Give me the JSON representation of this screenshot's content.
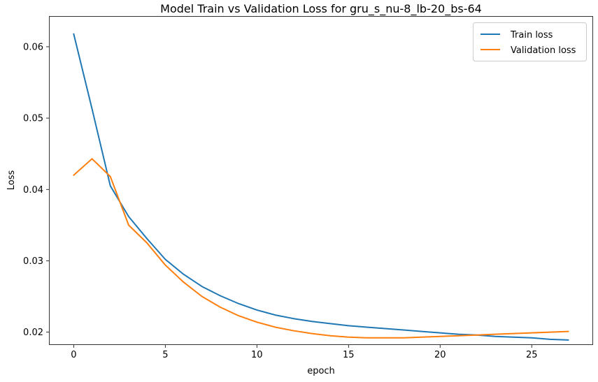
{
  "chart_data": {
    "type": "line",
    "title": "Model Train vs Validation Loss for gru_s_nu-8_lb-20_bs-64",
    "xlabel": "epoch",
    "ylabel": "Loss",
    "xlim": [
      -1.35,
      28.35
    ],
    "ylim": [
      0.0182,
      0.0643
    ],
    "x_ticks": [
      0,
      5,
      10,
      15,
      20,
      25
    ],
    "y_ticks": [
      0.02,
      0.03,
      0.04,
      0.05,
      0.06
    ],
    "x_tick_labels": [
      "0",
      "5",
      "10",
      "15",
      "20",
      "25"
    ],
    "y_tick_labels": [
      "0.02",
      "0.03",
      "0.04",
      "0.05",
      "0.06"
    ],
    "grid": false,
    "legend_position": "top-right",
    "x": [
      0,
      1,
      2,
      3,
      4,
      5,
      6,
      7,
      8,
      9,
      10,
      11,
      12,
      13,
      14,
      15,
      16,
      17,
      18,
      19,
      20,
      21,
      22,
      23,
      24,
      25,
      26,
      27
    ],
    "series": [
      {
        "name": "Train loss",
        "color": "#1f77b4",
        "values": [
          0.0618,
          0.0513,
          0.0405,
          0.0362,
          0.0331,
          0.0302,
          0.0281,
          0.0264,
          0.0251,
          0.024,
          0.0231,
          0.0224,
          0.0219,
          0.0215,
          0.0212,
          0.0209,
          0.0207,
          0.0205,
          0.0203,
          0.0201,
          0.0199,
          0.0197,
          0.0196,
          0.0194,
          0.0193,
          0.0192,
          0.019,
          0.0189
        ]
      },
      {
        "name": "Validation loss",
        "color": "#ff7f0e",
        "values": [
          0.042,
          0.0443,
          0.0418,
          0.035,
          0.0325,
          0.0294,
          0.027,
          0.025,
          0.0235,
          0.0223,
          0.0214,
          0.0207,
          0.0202,
          0.0198,
          0.0195,
          0.0193,
          0.0192,
          0.0192,
          0.0192,
          0.0193,
          0.0194,
          0.0195,
          0.0196,
          0.0197,
          0.0198,
          0.0199,
          0.02,
          0.0201
        ]
      }
    ]
  }
}
